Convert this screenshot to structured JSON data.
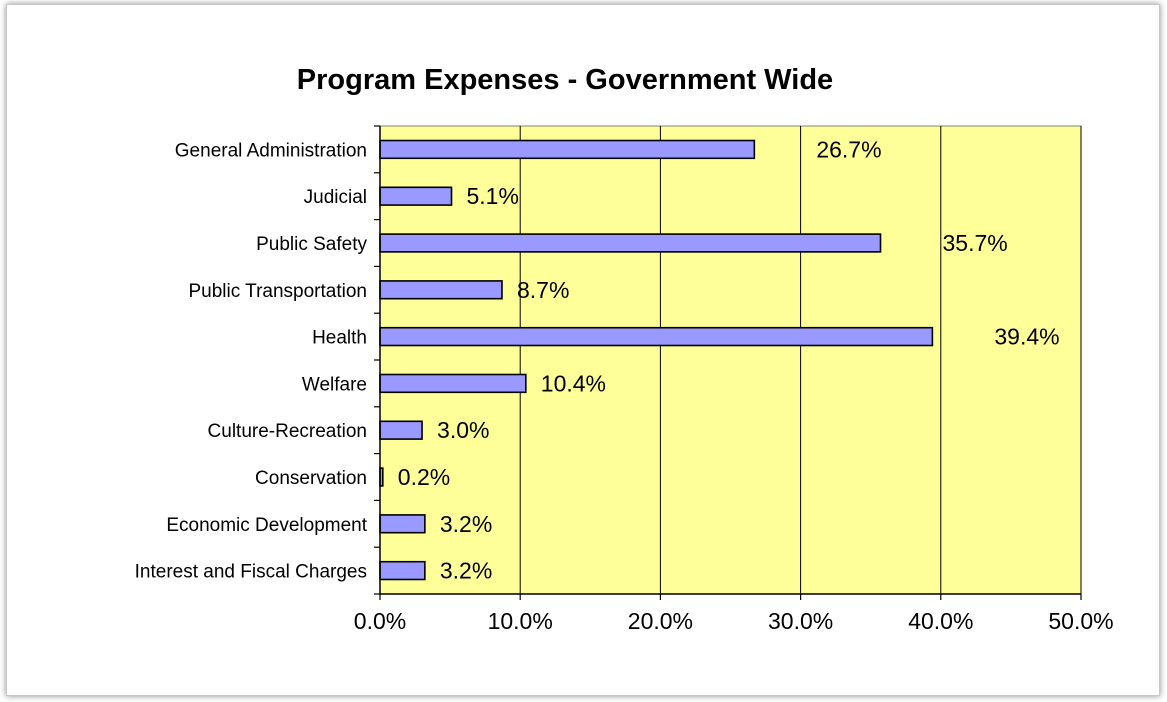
{
  "chart_data": {
    "type": "bar",
    "orientation": "horizontal",
    "title": "Program Expenses - Government Wide",
    "xlabel": "",
    "ylabel": "",
    "categories": [
      "General Administration",
      "Judicial",
      "Public Safety",
      "Public Transportation",
      "Health",
      "Welfare",
      "Culture-Recreation",
      "Conservation",
      "Economic Development",
      "Interest and Fiscal Charges"
    ],
    "values": [
      26.7,
      5.1,
      35.7,
      8.7,
      39.4,
      10.4,
      3.0,
      0.2,
      3.2,
      3.2
    ],
    "data_labels": [
      "26.7%",
      "5.1%",
      "35.7%",
      "8.7%",
      "39.4%",
      "10.4%",
      "3.0%",
      "0.2%",
      "3.2%",
      "3.2%"
    ],
    "xlim": [
      0,
      50
    ],
    "x_ticks": [
      0,
      10,
      20,
      30,
      40,
      50
    ],
    "x_tick_labels": [
      "0.0%",
      "10.0%",
      "20.0%",
      "30.0%",
      "40.0%",
      "50.0%"
    ],
    "grid": "vertical",
    "legend": "none",
    "colors": {
      "plot_background": "#ffff99",
      "bar_fill": "#9999ff",
      "bar_stroke": "#000000",
      "gridline": "#000000"
    }
  }
}
